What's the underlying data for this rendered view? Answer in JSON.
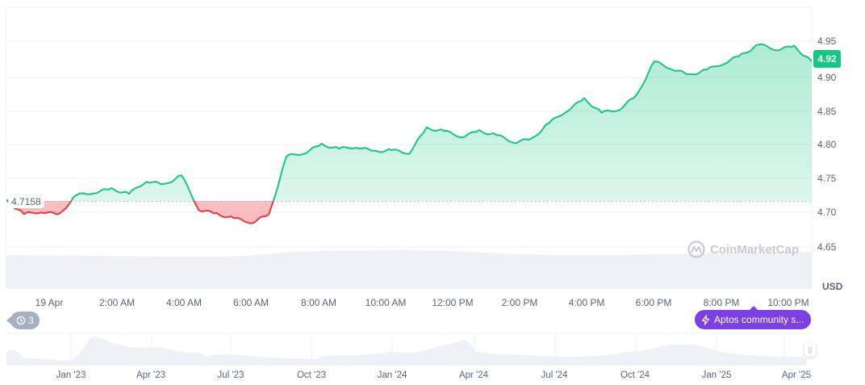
{
  "chart_data": [
    {
      "type": "line",
      "title": "",
      "subtitle": "",
      "xlabel": "",
      "ylabel": "USD",
      "currency": "USD",
      "baseline": 4.7158,
      "current_price": 4.92,
      "ylim": [
        4.62,
        4.97
      ],
      "y_ticks": [
        "4.95",
        "4.90",
        "4.85",
        "4.80",
        "4.75",
        "4.70",
        "4.65"
      ],
      "x_ticks": [
        "19 Apr",
        "2:00 AM",
        "4:00 AM",
        "6:00 AM",
        "8:00 AM",
        "10:00 AM",
        "12:00 PM",
        "2:00 PM",
        "4:00 PM",
        "6:00 PM",
        "8:00 PM",
        "10:00 PM"
      ],
      "grid": true,
      "colors": {
        "up": "#16c784",
        "down": "#ea3943",
        "up_fill": "#16c784",
        "down_fill": "#f3a1a6"
      },
      "series": [
        {
          "name": "Price",
          "x": [
            "00:00",
            "00:30",
            "01:00",
            "01:30",
            "02:00",
            "02:30",
            "03:00",
            "03:30",
            "04:00",
            "04:30",
            "05:00",
            "05:30",
            "06:00",
            "06:30",
            "07:00",
            "07:30",
            "08:00",
            "08:30",
            "09:00",
            "09:30",
            "10:00",
            "10:30",
            "11:00",
            "11:30",
            "12:00",
            "12:30",
            "13:00",
            "13:30",
            "14:00",
            "14:30",
            "15:00",
            "15:30",
            "16:00",
            "16:30",
            "17:00",
            "17:30",
            "18:00",
            "18:30",
            "19:00",
            "19:30",
            "20:00",
            "20:30",
            "21:00",
            "21:30",
            "22:00",
            "22:30",
            "23:00"
          ],
          "values": [
            4.716,
            4.696,
            4.7,
            4.695,
            4.724,
            4.728,
            4.733,
            4.726,
            4.745,
            4.739,
            4.753,
            4.703,
            4.696,
            4.69,
            4.684,
            4.695,
            4.781,
            4.786,
            4.798,
            4.792,
            4.795,
            4.788,
            4.79,
            4.786,
            4.822,
            4.818,
            4.81,
            4.818,
            4.812,
            4.802,
            4.806,
            4.83,
            4.848,
            4.865,
            4.845,
            4.85,
            4.87,
            4.92,
            4.91,
            4.9,
            4.908,
            4.918,
            4.93,
            4.945,
            4.938,
            4.942,
            4.92
          ]
        }
      ],
      "volume": {
        "type": "bar",
        "note": "light gray volume bars beneath price line"
      },
      "navigator": {
        "type": "area",
        "x_ticks": [
          "Jan '23",
          "Apr '23",
          "Jul '23",
          "Oct '23",
          "Jan '24",
          "Apr '24",
          "Jul '24",
          "Oct '24",
          "Jan '25",
          "Apr '25"
        ]
      },
      "legend": {
        "position": "none"
      }
    }
  ],
  "labels": {
    "baseline_value": "4.7158",
    "current_price": "4.92",
    "currency": "USD",
    "watermark": "CoinMarketCap",
    "history_count": "3",
    "event_label": "Aptos community s..."
  },
  "axes": {
    "y_ticks": [
      "4.95",
      "4.90",
      "4.85",
      "4.80",
      "4.75",
      "4.70",
      "4.65"
    ],
    "x_ticks": [
      "19 Apr",
      "2:00 AM",
      "4:00 AM",
      "6:00 AM",
      "8:00 AM",
      "10:00 AM",
      "12:00 PM",
      "2:00 PM",
      "4:00 PM",
      "6:00 PM",
      "8:00 PM",
      "10:00 PM"
    ],
    "nav_ticks": [
      "Jan '23",
      "Apr '23",
      "Jul '23",
      "Oct '23",
      "Jan '24",
      "Apr '24",
      "Jul '24",
      "Oct '24",
      "Jan '25",
      "Apr '25"
    ]
  }
}
